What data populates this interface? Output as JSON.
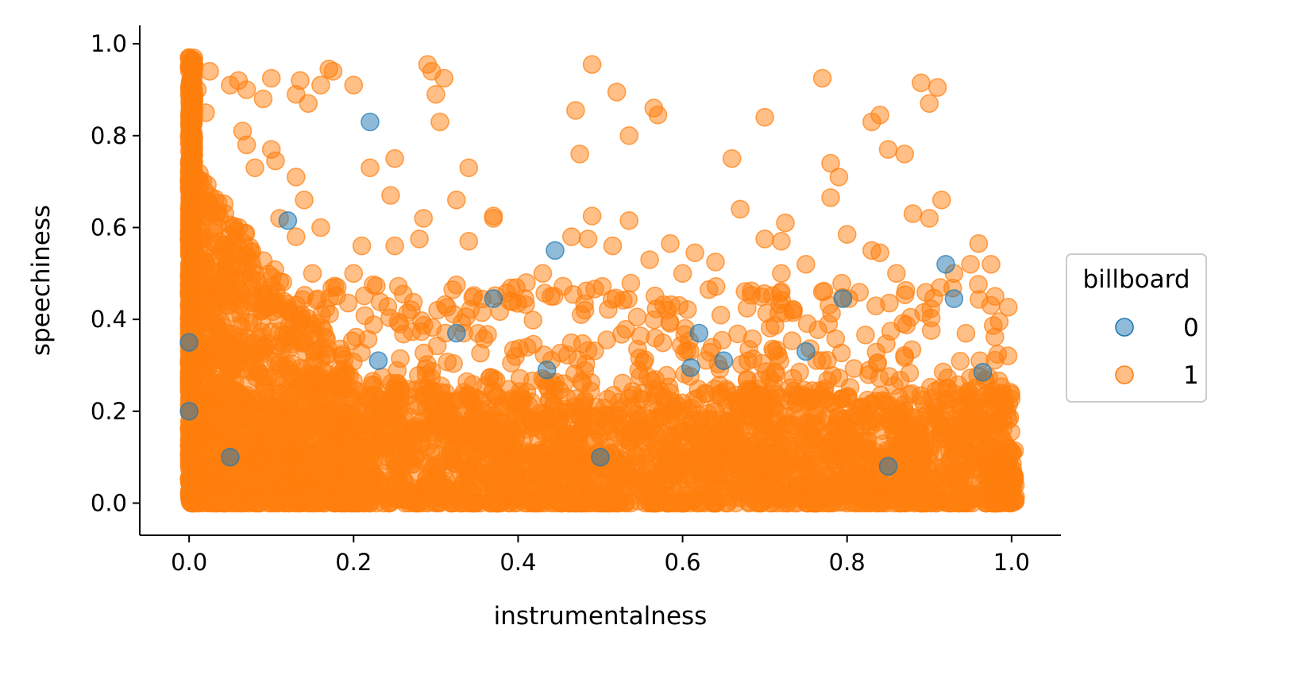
{
  "chart_data": {
    "type": "scatter",
    "title": "",
    "xlabel": "instrumentalness",
    "ylabel": "speechiness",
    "xlim": [
      -0.06,
      1.06
    ],
    "ylim": [
      -0.07,
      1.04
    ],
    "xticks": [
      0.0,
      0.2,
      0.4,
      0.6,
      0.8,
      1.0
    ],
    "yticks": [
      0.0,
      0.2,
      0.4,
      0.6,
      0.8,
      1.0
    ],
    "xtick_labels": [
      "0.0",
      "0.2",
      "0.4",
      "0.6",
      "0.8",
      "1.0"
    ],
    "ytick_labels": [
      "0.0",
      "0.2",
      "0.4",
      "0.6",
      "0.8",
      "1.0"
    ],
    "grid": false,
    "legend": {
      "title": "billboard",
      "placement": "outside-right"
    },
    "series": [
      {
        "name": "0",
        "color": "#1f77b4",
        "alpha": 0.5,
        "points": [
          [
            0.22,
            0.83
          ],
          [
            0.445,
            0.55
          ],
          [
            0.12,
            0.615
          ],
          [
            0.37,
            0.445
          ],
          [
            0.325,
            0.37
          ],
          [
            0.62,
            0.37
          ],
          [
            0.61,
            0.295
          ],
          [
            0.435,
            0.29
          ],
          [
            0.965,
            0.285
          ],
          [
            0.92,
            0.52
          ],
          [
            0.795,
            0.445
          ],
          [
            0.93,
            0.445
          ],
          [
            0.75,
            0.33
          ],
          [
            0.65,
            0.31
          ],
          [
            0.23,
            0.31
          ],
          [
            0.0,
            0.35
          ],
          [
            0.0,
            0.2
          ],
          [
            0.05,
            0.1
          ],
          [
            0.5,
            0.1
          ],
          [
            0.85,
            0.08
          ]
        ]
      },
      {
        "name": "1",
        "color": "#ff7f0e",
        "alpha": 0.5,
        "points": [
          [
            0.0,
            0.97
          ],
          [
            0.0,
            0.95
          ],
          [
            0.01,
            0.9
          ],
          [
            0.02,
            0.85
          ],
          [
            0.025,
            0.94
          ],
          [
            0.05,
            0.91
          ],
          [
            0.06,
            0.92
          ],
          [
            0.07,
            0.9
          ],
          [
            0.09,
            0.88
          ],
          [
            0.1,
            0.925
          ],
          [
            0.13,
            0.89
          ],
          [
            0.135,
            0.92
          ],
          [
            0.145,
            0.87
          ],
          [
            0.16,
            0.91
          ],
          [
            0.17,
            0.945
          ],
          [
            0.175,
            0.94
          ],
          [
            0.2,
            0.91
          ],
          [
            0.065,
            0.81
          ],
          [
            0.07,
            0.78
          ],
          [
            0.08,
            0.73
          ],
          [
            0.1,
            0.77
          ],
          [
            0.105,
            0.745
          ],
          [
            0.13,
            0.71
          ],
          [
            0.11,
            0.62
          ],
          [
            0.14,
            0.66
          ],
          [
            0.13,
            0.58
          ],
          [
            0.16,
            0.6
          ],
          [
            0.22,
            0.73
          ],
          [
            0.25,
            0.75
          ],
          [
            0.245,
            0.67
          ],
          [
            0.21,
            0.56
          ],
          [
            0.25,
            0.56
          ],
          [
            0.28,
            0.575
          ],
          [
            0.285,
            0.62
          ],
          [
            0.29,
            0.955
          ],
          [
            0.295,
            0.94
          ],
          [
            0.31,
            0.925
          ],
          [
            0.3,
            0.89
          ],
          [
            0.305,
            0.83
          ],
          [
            0.34,
            0.73
          ],
          [
            0.325,
            0.66
          ],
          [
            0.37,
            0.625
          ],
          [
            0.37,
            0.62
          ],
          [
            0.34,
            0.57
          ],
          [
            0.325,
            0.475
          ],
          [
            0.41,
            0.48
          ],
          [
            0.43,
            0.5
          ],
          [
            0.47,
            0.855
          ],
          [
            0.49,
            0.955
          ],
          [
            0.52,
            0.895
          ],
          [
            0.535,
            0.8
          ],
          [
            0.565,
            0.86
          ],
          [
            0.57,
            0.845
          ],
          [
            0.475,
            0.76
          ],
          [
            0.465,
            0.58
          ],
          [
            0.49,
            0.625
          ],
          [
            0.485,
            0.575
          ],
          [
            0.515,
            0.56
          ],
          [
            0.535,
            0.615
          ],
          [
            0.585,
            0.565
          ],
          [
            0.615,
            0.545
          ],
          [
            0.64,
            0.525
          ],
          [
            0.66,
            0.75
          ],
          [
            0.67,
            0.64
          ],
          [
            0.7,
            0.84
          ],
          [
            0.7,
            0.575
          ],
          [
            0.72,
            0.57
          ],
          [
            0.725,
            0.61
          ],
          [
            0.72,
            0.5
          ],
          [
            0.75,
            0.52
          ],
          [
            0.77,
            0.925
          ],
          [
            0.78,
            0.74
          ],
          [
            0.79,
            0.71
          ],
          [
            0.78,
            0.665
          ],
          [
            0.8,
            0.585
          ],
          [
            0.77,
            0.46
          ],
          [
            0.83,
            0.83
          ],
          [
            0.84,
            0.845
          ],
          [
            0.85,
            0.77
          ],
          [
            0.87,
            0.76
          ],
          [
            0.88,
            0.63
          ],
          [
            0.89,
            0.915
          ],
          [
            0.9,
            0.87
          ],
          [
            0.91,
            0.905
          ],
          [
            0.915,
            0.66
          ],
          [
            0.9,
            0.62
          ],
          [
            0.83,
            0.55
          ],
          [
            0.84,
            0.545
          ],
          [
            0.96,
            0.565
          ],
          [
            0.975,
            0.52
          ],
          [
            0.98,
            0.45
          ],
          [
            0.985,
            0.395
          ],
          [
            0.95,
            0.52
          ],
          [
            0.93,
            0.5
          ],
          [
            0.86,
            0.5
          ],
          [
            0.6,
            0.5
          ],
          [
            0.56,
            0.53
          ],
          [
            0.44,
            0.45
          ],
          [
            0.39,
            0.44
          ],
          [
            0.2,
            0.5
          ],
          [
            0.18,
            0.47
          ],
          [
            0.15,
            0.5
          ],
          [
            0.08,
            0.5
          ],
          [
            0.04,
            0.55
          ],
          [
            0.03,
            0.6
          ]
        ],
        "dense_region": {
          "x_range": [
            0.0,
            1.0
          ],
          "y_range": [
            0.0,
            0.35
          ],
          "note": "dense cloud"
        }
      }
    ]
  }
}
